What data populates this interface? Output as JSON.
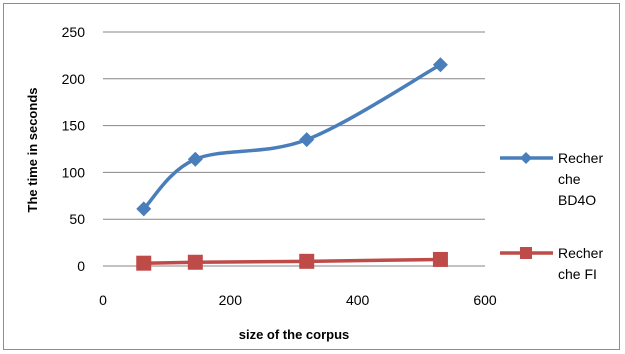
{
  "chart_data": {
    "type": "line",
    "xlabel": "size of the corpus",
    "ylabel": "The time in seconds",
    "xlim": [
      0,
      600
    ],
    "ylim": [
      0,
      250
    ],
    "xticks": [
      0,
      200,
      400,
      600
    ],
    "yticks": [
      0,
      50,
      100,
      150,
      200,
      250
    ],
    "grid": "horizontal",
    "legend_position": "right",
    "series": [
      {
        "name": "Recherche BD4O",
        "name_lines": [
          "Recher",
          "che",
          "BD4O"
        ],
        "color": "#4a7ebb",
        "marker": "diamond",
        "smooth": true,
        "x": [
          64,
          145,
          320,
          530
        ],
        "y": [
          61,
          114,
          135,
          215
        ]
      },
      {
        "name": "Recherche FI",
        "name_lines": [
          "Recher",
          "che FI"
        ],
        "color": "#be4b48",
        "marker": "square",
        "smooth": false,
        "x": [
          64,
          145,
          320,
          530
        ],
        "y": [
          3,
          4,
          5,
          7
        ]
      }
    ]
  }
}
